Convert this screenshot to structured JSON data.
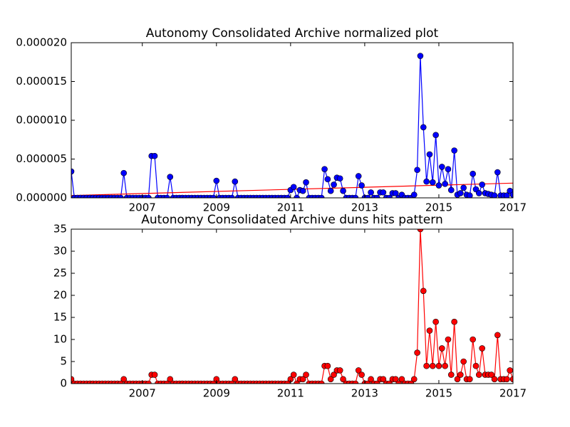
{
  "chart_data": [
    {
      "type": "line",
      "title": "Autonomy Consolidated Archive normalized plot",
      "x": [
        2005.083,
        2005.167,
        2005.25,
        2005.333,
        2005.417,
        2005.5,
        2005.583,
        2005.667,
        2005.75,
        2005.833,
        2005.917,
        2006,
        2006.083,
        2006.167,
        2006.25,
        2006.333,
        2006.417,
        2006.5,
        2006.583,
        2006.667,
        2006.75,
        2006.833,
        2006.917,
        2007,
        2007.083,
        2007.167,
        2007.25,
        2007.333,
        2007.417,
        2007.5,
        2007.583,
        2007.667,
        2007.75,
        2007.833,
        2007.917,
        2008,
        2008.083,
        2008.167,
        2008.25,
        2008.333,
        2008.417,
        2008.5,
        2008.583,
        2008.667,
        2008.75,
        2008.833,
        2008.917,
        2009,
        2009.083,
        2009.167,
        2009.25,
        2009.333,
        2009.417,
        2009.5,
        2009.583,
        2009.667,
        2009.75,
        2009.833,
        2009.917,
        2010,
        2010.083,
        2010.167,
        2010.25,
        2010.333,
        2010.417,
        2010.5,
        2010.583,
        2010.667,
        2010.75,
        2010.833,
        2010.917,
        2011,
        2011.083,
        2011.167,
        2011.25,
        2011.333,
        2011.417,
        2011.5,
        2011.583,
        2011.667,
        2011.75,
        2011.833,
        2011.917,
        2012,
        2012.083,
        2012.167,
        2012.25,
        2012.333,
        2012.417,
        2012.5,
        2012.583,
        2012.667,
        2012.75,
        2012.833,
        2012.917,
        2013,
        2013.083,
        2013.167,
        2013.25,
        2013.333,
        2013.417,
        2013.5,
        2013.583,
        2013.667,
        2013.75,
        2013.833,
        2013.917,
        2014,
        2014.083,
        2014.167,
        2014.25,
        2014.333,
        2014.417,
        2014.5,
        2014.583,
        2014.667,
        2014.75,
        2014.833,
        2014.917,
        2015,
        2015.083,
        2015.167,
        2015.25,
        2015.333,
        2015.417,
        2015.5,
        2015.583,
        2015.667,
        2015.75,
        2015.833,
        2015.917,
        2016,
        2016.083,
        2016.167,
        2016.25,
        2016.333,
        2016.417,
        2016.5,
        2016.583,
        2016.667,
        2016.75,
        2016.833,
        2016.917,
        2017
      ],
      "series": [
        {
          "color": "#0000ff",
          "marker": true,
          "values": [
            3.4e-06,
            0,
            0,
            0,
            0,
            0,
            0,
            0,
            0,
            0,
            0,
            0,
            0,
            0,
            0,
            0,
            0,
            3.2e-06,
            0,
            0,
            0,
            0,
            0,
            0,
            0,
            0,
            5.4e-06,
            5.4e-06,
            0,
            0,
            0,
            0,
            2.7e-06,
            0,
            0,
            0,
            0,
            0,
            0,
            0,
            0,
            0,
            0,
            0,
            0,
            0,
            0,
            2.2e-06,
            0,
            0,
            0,
            0,
            0,
            2.1e-06,
            0,
            0,
            0,
            0,
            0,
            0,
            0,
            0,
            0,
            0,
            0,
            0,
            0,
            0,
            0,
            0,
            0,
            1e-06,
            1.4e-06,
            0,
            1e-06,
            9e-07,
            2e-06,
            0,
            0,
            0,
            0,
            0,
            3.7e-06,
            2.4e-06,
            9e-07,
            1.7e-06,
            2.6e-06,
            2.5e-06,
            9e-07,
            0,
            0,
            0,
            0,
            2.8e-06,
            1.6e-06,
            0,
            0,
            7e-07,
            0,
            0,
            7e-07,
            7e-07,
            0,
            0,
            6e-07,
            6e-07,
            0,
            4e-07,
            0,
            0,
            0,
            4e-07,
            3.6e-06,
            1.83e-05,
            9.1e-06,
            2.1e-06,
            5.6e-06,
            2e-06,
            8.1e-06,
            1.6e-06,
            4e-06,
            1.8e-06,
            3.7e-06,
            1e-06,
            6.1e-06,
            4e-07,
            6e-07,
            1.3e-06,
            4e-07,
            3e-07,
            3.1e-06,
            1.1e-06,
            6e-07,
            1.7e-06,
            6e-07,
            5e-07,
            4e-07,
            3e-07,
            3.3e-06,
            3e-07,
            3e-07,
            3e-07,
            9e-07,
            4e-07
          ]
        },
        {
          "color": "#ff0000",
          "marker": false,
          "x": [
            2005.083,
            2017
          ],
          "values": [
            3e-07,
            1.9e-06
          ]
        }
      ],
      "xlim": [
        2005.083,
        2017
      ],
      "xticks": [
        2007,
        2009,
        2011,
        2013,
        2015,
        2017
      ],
      "ylim": [
        0,
        2e-05
      ],
      "yticks": [
        {
          "value": 0,
          "label": "0.000000"
        },
        {
          "value": 5e-06,
          "label": "0.000005"
        },
        {
          "value": 1e-05,
          "label": "0.000010"
        },
        {
          "value": 1.5e-05,
          "label": "0.000015"
        },
        {
          "value": 2e-05,
          "label": "0.000020"
        }
      ]
    },
    {
      "type": "line",
      "title": "Autonomy Consolidated Archive duns hits pattern",
      "x": [
        2005.083,
        2005.167,
        2005.25,
        2005.333,
        2005.417,
        2005.5,
        2005.583,
        2005.667,
        2005.75,
        2005.833,
        2005.917,
        2006,
        2006.083,
        2006.167,
        2006.25,
        2006.333,
        2006.417,
        2006.5,
        2006.583,
        2006.667,
        2006.75,
        2006.833,
        2006.917,
        2007,
        2007.083,
        2007.167,
        2007.25,
        2007.333,
        2007.417,
        2007.5,
        2007.583,
        2007.667,
        2007.75,
        2007.833,
        2007.917,
        2008,
        2008.083,
        2008.167,
        2008.25,
        2008.333,
        2008.417,
        2008.5,
        2008.583,
        2008.667,
        2008.75,
        2008.833,
        2008.917,
        2009,
        2009.083,
        2009.167,
        2009.25,
        2009.333,
        2009.417,
        2009.5,
        2009.583,
        2009.667,
        2009.75,
        2009.833,
        2009.917,
        2010,
        2010.083,
        2010.167,
        2010.25,
        2010.333,
        2010.417,
        2010.5,
        2010.583,
        2010.667,
        2010.75,
        2010.833,
        2010.917,
        2011,
        2011.083,
        2011.167,
        2011.25,
        2011.333,
        2011.417,
        2011.5,
        2011.583,
        2011.667,
        2011.75,
        2011.833,
        2011.917,
        2012,
        2012.083,
        2012.167,
        2012.25,
        2012.333,
        2012.417,
        2012.5,
        2012.583,
        2012.667,
        2012.75,
        2012.833,
        2012.917,
        2013,
        2013.083,
        2013.167,
        2013.25,
        2013.333,
        2013.417,
        2013.5,
        2013.583,
        2013.667,
        2013.75,
        2013.833,
        2013.917,
        2014,
        2014.083,
        2014.167,
        2014.25,
        2014.333,
        2014.417,
        2014.5,
        2014.583,
        2014.667,
        2014.75,
        2014.833,
        2014.917,
        2015,
        2015.083,
        2015.167,
        2015.25,
        2015.333,
        2015.417,
        2015.5,
        2015.583,
        2015.667,
        2015.75,
        2015.833,
        2015.917,
        2016,
        2016.083,
        2016.167,
        2016.25,
        2016.333,
        2016.417,
        2016.5,
        2016.583,
        2016.667,
        2016.75,
        2016.833,
        2016.917,
        2017
      ],
      "series": [
        {
          "color": "#ff0000",
          "marker": true,
          "values": [
            1,
            0,
            0,
            0,
            0,
            0,
            0,
            0,
            0,
            0,
            0,
            0,
            0,
            0,
            0,
            0,
            0,
            1,
            0,
            0,
            0,
            0,
            0,
            0,
            0,
            0,
            2,
            2,
            0,
            0,
            0,
            0,
            1,
            0,
            0,
            0,
            0,
            0,
            0,
            0,
            0,
            0,
            0,
            0,
            0,
            0,
            0,
            1,
            0,
            0,
            0,
            0,
            0,
            1,
            0,
            0,
            0,
            0,
            0,
            0,
            0,
            0,
            0,
            0,
            0,
            0,
            0,
            0,
            0,
            0,
            0,
            1,
            2,
            0,
            1,
            1,
            2,
            0,
            0,
            0,
            0,
            0,
            4,
            4,
            1,
            2,
            3,
            3,
            1,
            0,
            0,
            0,
            0,
            3,
            2,
            0,
            0,
            1,
            0,
            0,
            1,
            1,
            0,
            0,
            1,
            1,
            0,
            1,
            0,
            0,
            0,
            1,
            7,
            35,
            21,
            4,
            12,
            4,
            14,
            4,
            8,
            4,
            10,
            2,
            14,
            1,
            2,
            5,
            1,
            1,
            10,
            4,
            2,
            8,
            2,
            2,
            2,
            1,
            11,
            1,
            1,
            1,
            3,
            1
          ]
        }
      ],
      "xlim": [
        2005.083,
        2017
      ],
      "xticks": [
        2007,
        2009,
        2011,
        2013,
        2015,
        2017
      ],
      "ylim": [
        0,
        35
      ],
      "yticks": [
        0,
        5,
        10,
        15,
        20,
        25,
        30,
        35
      ]
    }
  ]
}
